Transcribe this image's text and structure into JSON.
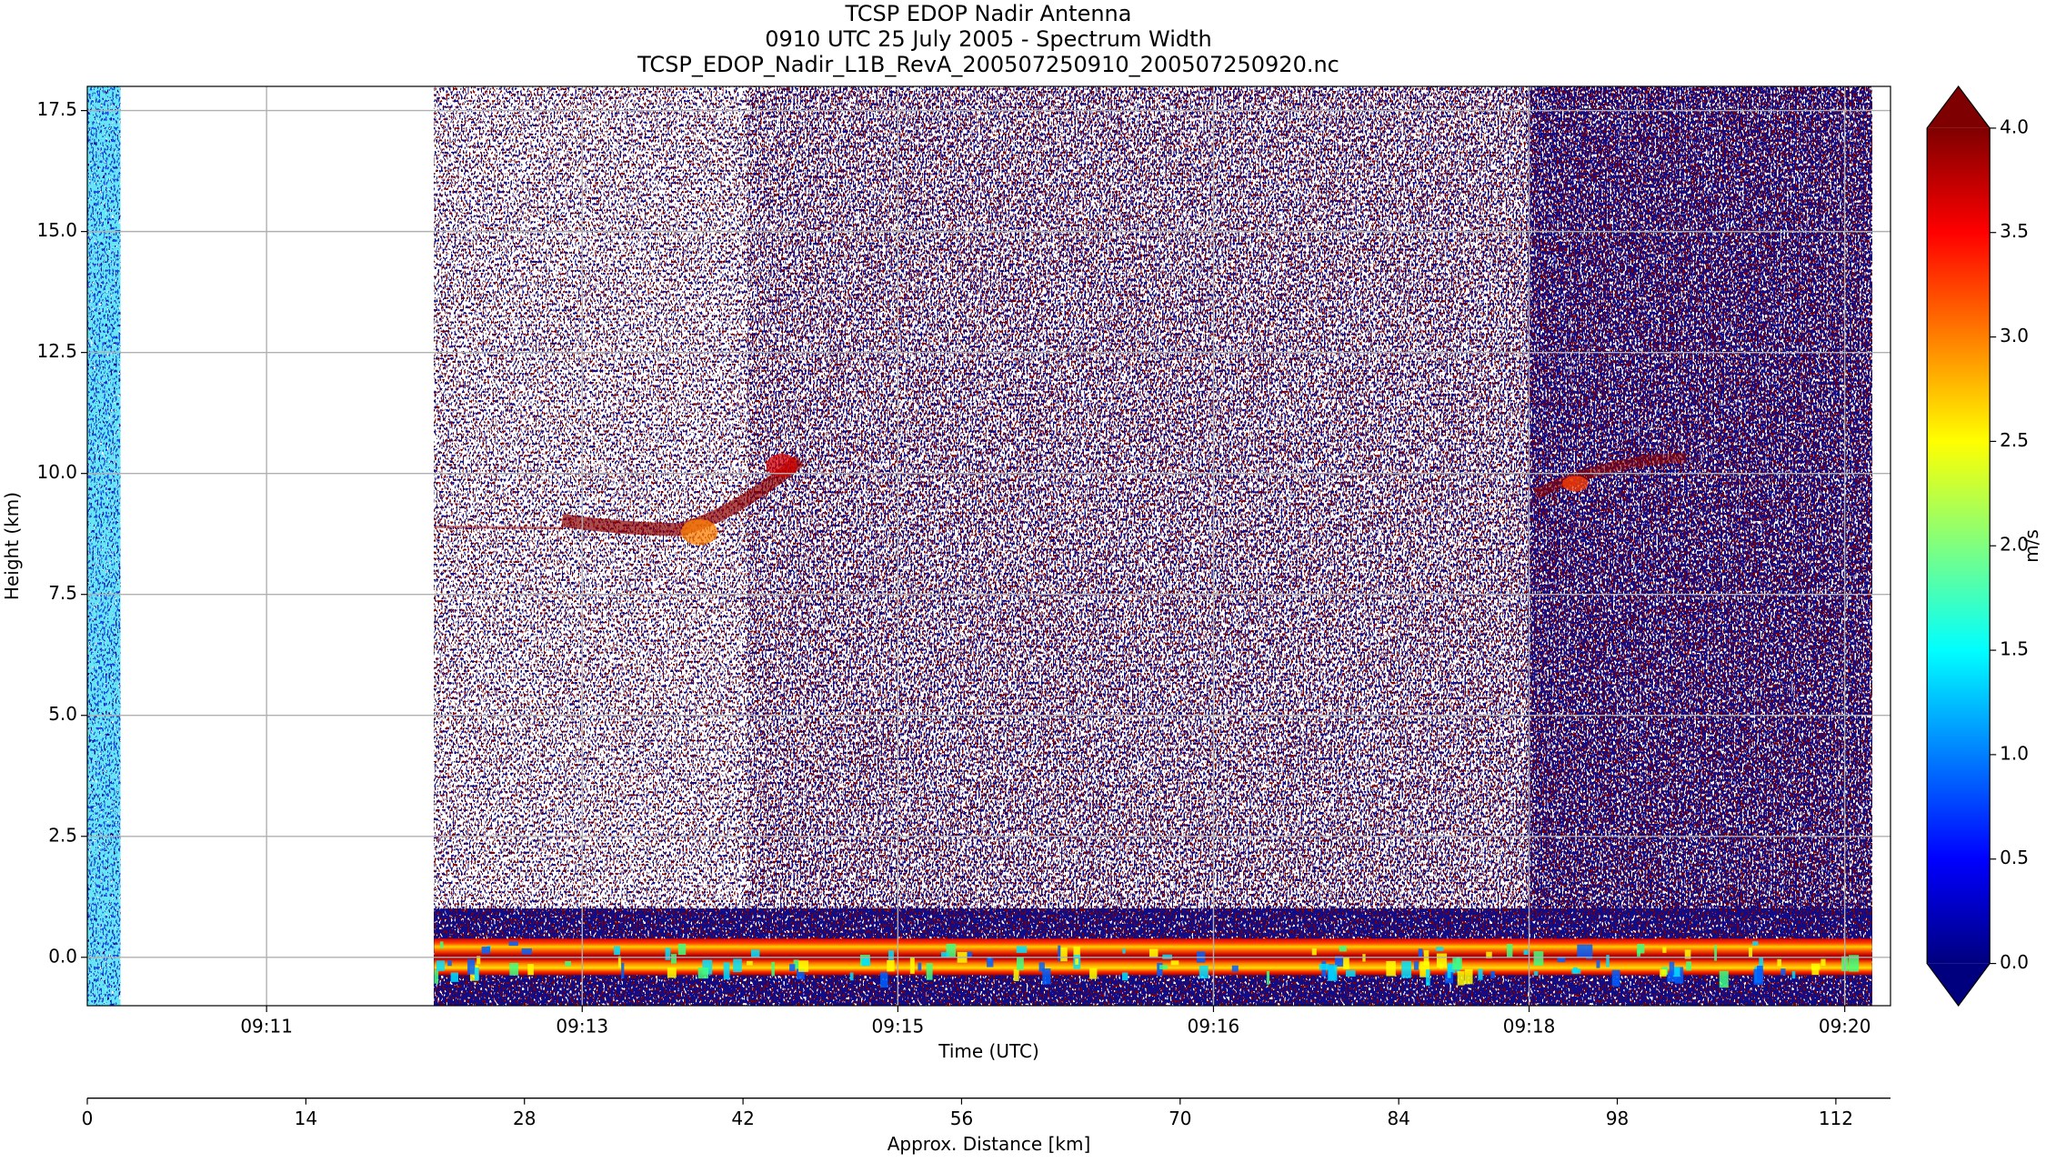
{
  "chart_data": {
    "type": "heatmap",
    "title": [
      "TCSP EDOP Nadir Antenna",
      "0910 UTC 25 July 2005 - Spectrum Width",
      "TCSP_EDOP_Nadir_L1B_RevA_200507250910_200507250920.nc"
    ],
    "x_label": "Time (UTC)",
    "y_label": "Height (km)",
    "xlim": [
      13.2,
      584.5
    ],
    "xticks": [
      {
        "value": 70,
        "label": "09:11"
      },
      {
        "value": 170,
        "label": "09:13"
      },
      {
        "value": 270,
        "label": "09:15"
      },
      {
        "value": 370,
        "label": "09:16"
      },
      {
        "value": 470,
        "label": "09:18"
      },
      {
        "value": 570,
        "label": "09:20"
      }
    ],
    "ylim": [
      -1,
      18
    ],
    "yticks": [
      {
        "value": 0,
        "label": "0.0"
      },
      2.5,
      {
        "value": 5,
        "label": "5.0"
      },
      7.5,
      {
        "value": 10,
        "label": "10.0"
      },
      12.5,
      {
        "value": 15,
        "label": "15.0"
      },
      17.5
    ],
    "grid": true,
    "distance_axis": {
      "label": "Approx. Distance [km]",
      "xlim": [
        0,
        115.5
      ],
      "xticks": [
        0,
        14,
        28,
        42,
        56,
        70,
        84,
        98,
        112
      ]
    },
    "colorbar": {
      "label": "m/s",
      "colormap": "jet",
      "lim": [
        0,
        4
      ],
      "ticks": [
        {
          "value": 0,
          "label": "0.0"
        },
        0.5,
        {
          "value": 1,
          "label": "1.0"
        },
        1.5,
        {
          "value": 2,
          "label": "2.0"
        },
        2.5,
        {
          "value": 3,
          "label": "3.0"
        },
        3.5,
        {
          "value": 4,
          "label": "4.0"
        }
      ]
    }
  }
}
